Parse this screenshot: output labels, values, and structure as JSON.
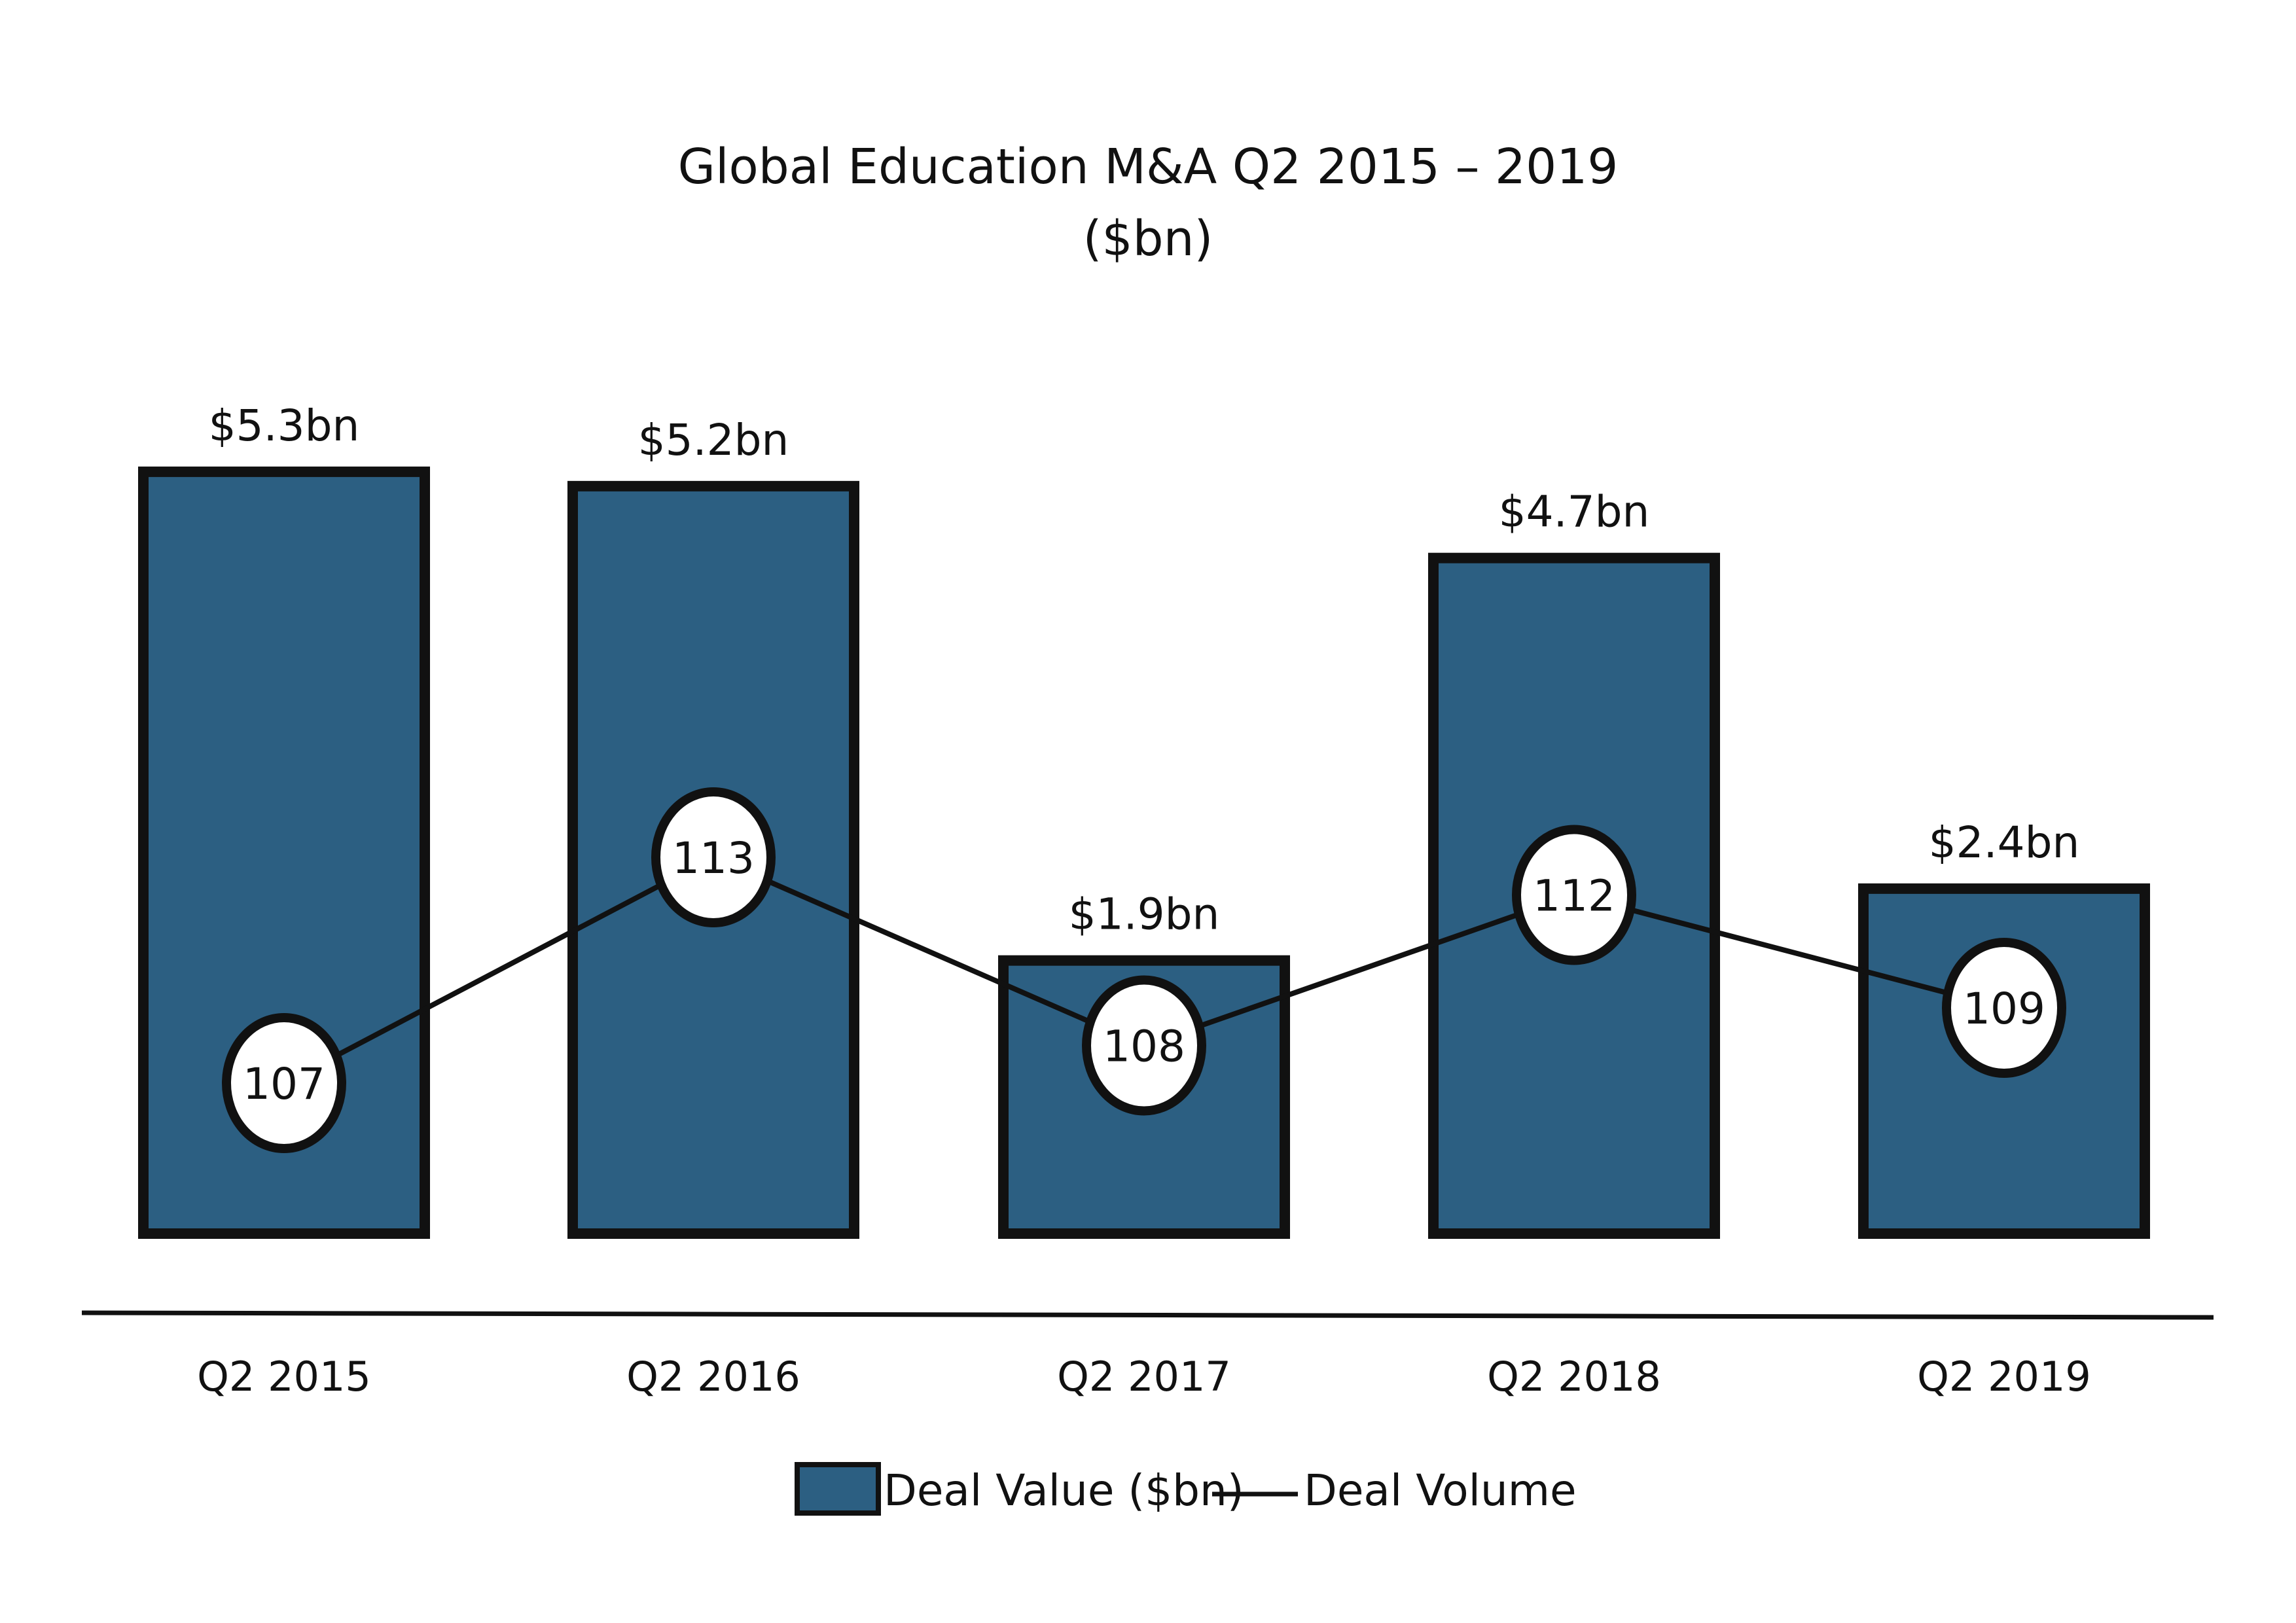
{
  "chart_data": {
    "type": "bar",
    "title": "Global Education M&A Q2 2015 – 2019",
    "subtitle": "($bn)",
    "xlabel": "",
    "ylabel": "",
    "ylim": [
      0,
      5.6
    ],
    "grid": false,
    "categories": [
      "Q2 2015",
      "Q2 2016",
      "Q2 2017",
      "Q2 2018",
      "Q2 2019"
    ],
    "series": [
      {
        "name": "Deal Value ($bn)",
        "type": "bar",
        "values": [
          5.3,
          5.2,
          1.9,
          4.7,
          2.4
        ],
        "data_labels": [
          "$5.3bn",
          "$5.2bn",
          "$1.9bn",
          "$4.7bn",
          "$2.4bn"
        ]
      },
      {
        "name": "Deal Volume",
        "type": "line",
        "values": [
          107,
          113,
          108,
          112,
          109
        ],
        "data_labels": [
          "107",
          "113",
          "108",
          "112",
          "109"
        ]
      }
    ],
    "volume_range": [
      100,
      120
    ],
    "legend_position": "bottom-center",
    "colors": {
      "bar_fill": "#2c5f82",
      "bar_stroke": "#111111",
      "line": "#111111",
      "marker_fill": "#ffffff"
    }
  }
}
